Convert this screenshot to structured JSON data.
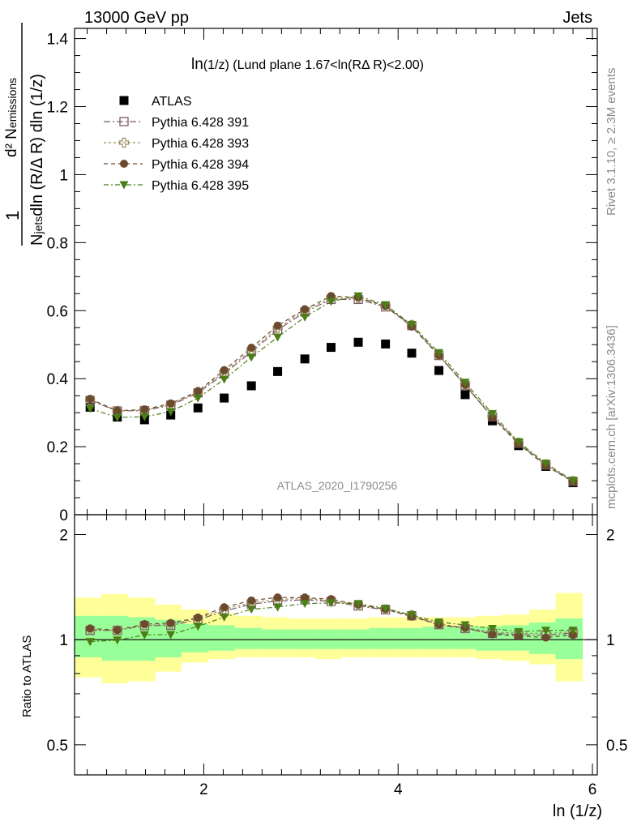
{
  "header": {
    "left": "13000 GeV pp",
    "right": "Jets"
  },
  "side": {
    "rivet": "Rivet 3.1.10, ≥ 2.3M events",
    "mcplots": "mcplots.cern.ch [arXiv:1306.3436]"
  },
  "watermark": "ATLAS_2020_I1790256",
  "chart_data": [
    {
      "type": "scatter",
      "title": "ln(1/z) (Lund plane 1.67<ln(RΔ R)<2.00)",
      "title_main": "ln",
      "title_sub": "(1/z) (Lund plane 1.67<ln(RΔ R)<2.00)",
      "xlabel": "ln (1/z)",
      "ylabel_parts": {
        "numerator": "d² N",
        "numerator_sub": "emissions",
        "denominator_a": "N",
        "denominator_sub": "jets",
        "denominator_b": "dln (R/Δ R) dln (1/z)",
        "prefix": "1"
      },
      "xlim": [
        0.67,
        6.05
      ],
      "ylim": [
        0,
        1.43
      ],
      "yticks": [
        0,
        0.2,
        0.4,
        0.6,
        0.8,
        1,
        1.2,
        1.4
      ],
      "ytick_labels": [
        "0",
        "0.2",
        "0.4",
        "0.6",
        "0.8",
        "1",
        "1.2",
        "1.4"
      ],
      "legend_position": "top-left",
      "x": [
        0.83,
        1.11,
        1.39,
        1.66,
        1.94,
        2.21,
        2.49,
        2.76,
        3.04,
        3.31,
        3.59,
        3.87,
        4.14,
        4.42,
        4.69,
        4.97,
        5.24,
        5.52,
        5.8
      ],
      "series": [
        {
          "name": "ATLAS",
          "marker": "square-filled",
          "color": "#000000",
          "values": [
            0.316,
            0.287,
            0.279,
            0.293,
            0.314,
            0.343,
            0.379,
            0.421,
            0.458,
            0.492,
            0.507,
            0.502,
            0.475,
            0.424,
            0.353,
            0.276,
            0.203,
            0.142,
            0.094
          ]
        },
        {
          "name": "Pythia 6.428 391",
          "marker": "square-open",
          "color": "#7b5a6b",
          "dash": "8,3,2,3",
          "values": [
            0.336,
            0.305,
            0.306,
            0.322,
            0.358,
            0.414,
            0.479,
            0.543,
            0.596,
            0.633,
            0.633,
            0.611,
            0.556,
            0.468,
            0.38,
            0.288,
            0.21,
            0.146,
            0.098
          ]
        },
        {
          "name": "Pythia 6.428 393",
          "marker": "cross-open",
          "color": "#9a8c5a",
          "dash": "3,3",
          "values": [
            0.338,
            0.305,
            0.307,
            0.324,
            0.361,
            0.419,
            0.484,
            0.549,
            0.601,
            0.637,
            0.637,
            0.613,
            0.558,
            0.47,
            0.382,
            0.29,
            0.212,
            0.148,
            0.099
          ]
        },
        {
          "name": "Pythia 6.428 394",
          "marker": "circle-filled",
          "color": "#6b4a2e",
          "dash": "5,4",
          "values": [
            0.34,
            0.306,
            0.309,
            0.327,
            0.363,
            0.425,
            0.491,
            0.556,
            0.604,
            0.643,
            0.639,
            0.614,
            0.553,
            0.468,
            0.382,
            0.286,
            0.208,
            0.144,
            0.097
          ]
        },
        {
          "name": "Pythia 6.428 395",
          "marker": "triangle-down-filled",
          "color": "#4b7f16",
          "dash": "6,3,2,3",
          "values": [
            0.312,
            0.286,
            0.288,
            0.303,
            0.343,
            0.398,
            0.463,
            0.522,
            0.581,
            0.627,
            0.643,
            0.617,
            0.559,
            0.476,
            0.389,
            0.297,
            0.214,
            0.151,
            0.1
          ]
        }
      ]
    },
    {
      "type": "scatter",
      "ylabel": "Ratio to ATLAS",
      "xlabel": "ln (1/z)",
      "xlim": [
        0.67,
        6.05
      ],
      "xticks": [
        2,
        4,
        6
      ],
      "xtick_labels": [
        "2",
        "4",
        "6"
      ],
      "ylim": [
        0.41,
        2.28
      ],
      "ylog": true,
      "yticks": [
        0.5,
        1,
        2
      ],
      "ytick_labels": [
        "0.5",
        "1",
        "2"
      ],
      "x": [
        0.83,
        1.11,
        1.39,
        1.66,
        1.94,
        2.21,
        2.49,
        2.76,
        3.04,
        3.31,
        3.59,
        3.87,
        4.14,
        4.42,
        4.69,
        4.97,
        5.24,
        5.52,
        5.8
      ],
      "bin_edges": [
        0.67,
        0.95,
        1.22,
        1.5,
        1.77,
        2.05,
        2.32,
        2.6,
        2.87,
        3.15,
        3.42,
        3.7,
        3.97,
        4.25,
        4.52,
        4.8,
        5.07,
        5.35,
        5.62,
        5.9
      ],
      "band_inner": {
        "color": "#99ff99",
        "low": [
          0.89,
          0.87,
          0.87,
          0.89,
          0.92,
          0.93,
          0.94,
          0.94,
          0.94,
          0.94,
          0.94,
          0.94,
          0.94,
          0.94,
          0.94,
          0.93,
          0.93,
          0.91,
          0.88
        ],
        "high": [
          1.17,
          1.17,
          1.16,
          1.14,
          1.11,
          1.1,
          1.08,
          1.07,
          1.07,
          1.07,
          1.07,
          1.08,
          1.08,
          1.09,
          1.09,
          1.09,
          1.1,
          1.12,
          1.15
        ]
      },
      "band_outer": {
        "color": "#ffff99",
        "low": [
          0.78,
          0.75,
          0.76,
          0.81,
          0.86,
          0.88,
          0.89,
          0.89,
          0.89,
          0.88,
          0.89,
          0.89,
          0.89,
          0.89,
          0.89,
          0.88,
          0.87,
          0.85,
          0.76
        ],
        "high": [
          1.32,
          1.35,
          1.32,
          1.26,
          1.22,
          1.19,
          1.17,
          1.16,
          1.15,
          1.15,
          1.15,
          1.16,
          1.16,
          1.16,
          1.16,
          1.17,
          1.18,
          1.22,
          1.36
        ]
      },
      "series": [
        {
          "name": "Pythia 6.428 391",
          "values": [
            1.063,
            1.063,
            1.097,
            1.099,
            1.14,
            1.207,
            1.264,
            1.29,
            1.301,
            1.287,
            1.249,
            1.217,
            1.171,
            1.104,
            1.076,
            1.043,
            1.034,
            1.03,
            1.045
          ]
        },
        {
          "name": "Pythia 6.428 393",
          "values": [
            1.07,
            1.063,
            1.1,
            1.106,
            1.15,
            1.222,
            1.277,
            1.304,
            1.312,
            1.295,
            1.256,
            1.221,
            1.175,
            1.108,
            1.082,
            1.051,
            1.044,
            1.042,
            1.053
          ]
        },
        {
          "name": "Pythia 6.428 394",
          "values": [
            1.076,
            1.066,
            1.108,
            1.116,
            1.156,
            1.239,
            1.295,
            1.321,
            1.319,
            1.307,
            1.26,
            1.223,
            1.164,
            1.104,
            1.082,
            1.036,
            1.025,
            1.014,
            1.032
          ]
        },
        {
          "name": "Pythia 6.428 395",
          "values": [
            0.987,
            0.997,
            1.032,
            1.034,
            1.092,
            1.16,
            1.222,
            1.24,
            1.269,
            1.274,
            1.268,
            1.229,
            1.177,
            1.123,
            1.102,
            1.076,
            1.054,
            1.063,
            1.064
          ]
        }
      ]
    }
  ]
}
